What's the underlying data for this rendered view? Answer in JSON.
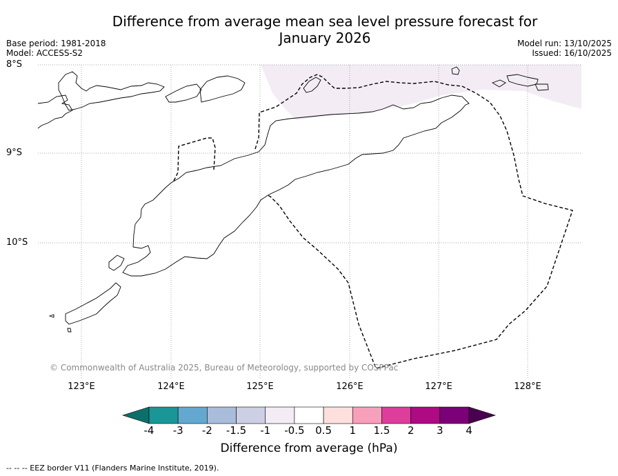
{
  "title": "Difference from average mean sea level pressure forecast for January 2026",
  "title_line1": "Difference from average mean sea level pressure forecast for",
  "title_line2": "January 2026",
  "base_period": "Base period: 1981-2018",
  "model": "Model: ACCESS-S2",
  "model_run": "Model run: 13/10/2025",
  "issued": "Issued: 16/10/2025",
  "lat_labels": [
    "8°S",
    "9°S",
    "10°S"
  ],
  "lon_labels": [
    "123°E",
    "124°E",
    "125°E",
    "126°E",
    "127°E",
    "128°E"
  ],
  "copyright": "© Commonwealth of Australia 2025, Bureau of Meteorology, supported by COSPPac",
  "colorbar": {
    "label": "Difference from average (hPa)",
    "ticks": [
      "-4",
      "-3",
      "-2",
      "-1.5",
      "-1",
      "-0.5",
      "0.5",
      "1",
      "1.5",
      "2",
      "3",
      "4"
    ],
    "colors": [
      "#0d6f6a",
      "#1a9697",
      "#64a8cf",
      "#a9bcdc",
      "#cdcfe5",
      "#f3ecf5",
      "#ffffff",
      "#fde0de",
      "#f7a0bc",
      "#dd3e9b",
      "#ad0a83",
      "#7a0177",
      "#4a0050"
    ]
  },
  "footer": "--  --  -- EEZ border V11 (Flanders Marine Institute, 2019).",
  "chart_data": {
    "type": "map",
    "field": "mean sea level pressure anomaly",
    "units": "hPa",
    "lon_range": [
      122.5,
      128.6
    ],
    "lat_range": [
      -11.4,
      -8.0
    ],
    "anomaly_regions": [
      {
        "category": "-0.5 to -1",
        "area": "north of Timor (approx 125.0E–128.6E, 8.0S–8.6S)"
      }
    ]
  }
}
